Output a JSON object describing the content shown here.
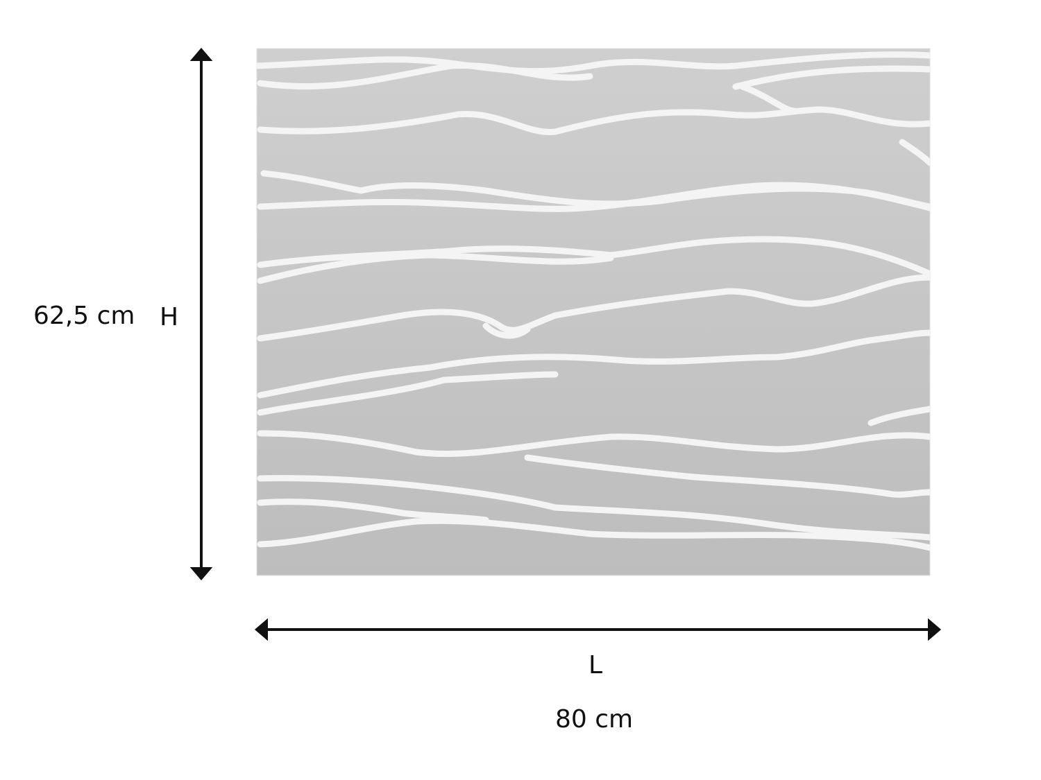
{
  "height": {
    "value": "62,5 cm",
    "symbol": "H"
  },
  "length": {
    "value": "80 cm",
    "symbol": "L"
  },
  "colors": {
    "panel": "#c4c4c4",
    "wave_highlight": "#f4f4f4",
    "arrow": "#111111"
  }
}
